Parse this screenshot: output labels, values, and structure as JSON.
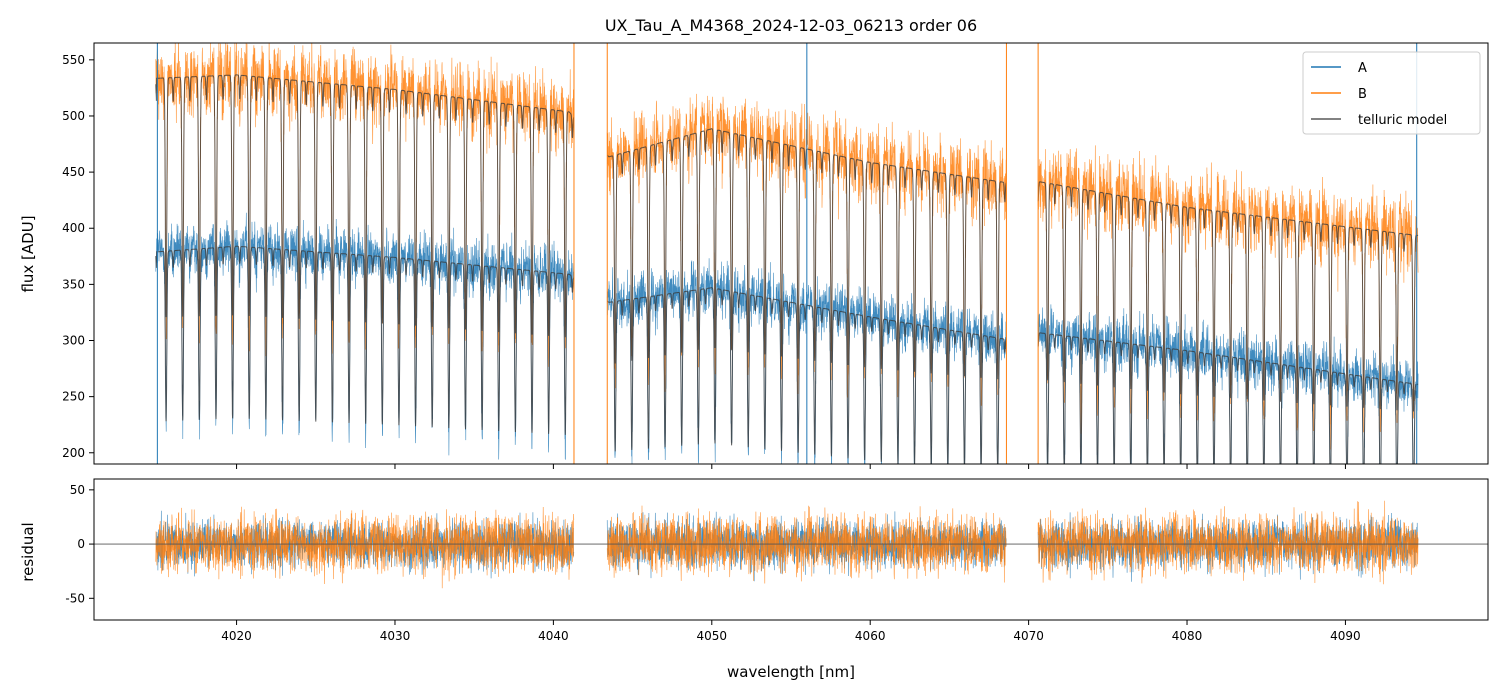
{
  "chart_data": [
    {
      "type": "line",
      "title": "UX_Tau_A_M4368_2024-12-03_06213  order 06",
      "ylabel": "flux [ADU]",
      "xlim": [
        4011,
        4099
      ],
      "ylim": [
        190,
        565
      ],
      "xticks": [
        4020,
        4030,
        4040,
        4050,
        4060,
        4070,
        4080,
        4090
      ],
      "yticks": [
        200,
        250,
        300,
        350,
        400,
        450,
        500,
        550
      ],
      "legend_position": "top-right",
      "segments": [
        [
          4014.9,
          4041.3
        ],
        [
          4043.4,
          4068.6
        ],
        [
          4070.6,
          4094.6
        ]
      ],
      "absorption_line_spacing_nm": 1.05,
      "series": [
        {
          "name": "A",
          "color": "#1f77b4",
          "continuum_points": [
            [
              4015,
              380
            ],
            [
              4020,
              385
            ],
            [
              4030,
              375
            ],
            [
              4041,
              360
            ],
            [
              4043.5,
              335
            ],
            [
              4050,
              348
            ],
            [
              4060,
              322
            ],
            [
              4068.6,
              302
            ],
            [
              4070.6,
              308
            ],
            [
              4080,
              292
            ],
            [
              4094.5,
              262
            ]
          ],
          "noise_amplitude": 20
        },
        {
          "name": "B",
          "color": "#ff7f0e",
          "continuum_points": [
            [
              4015,
              535
            ],
            [
              4020,
              538
            ],
            [
              4030,
              525
            ],
            [
              4041,
              505
            ],
            [
              4043.5,
              465
            ],
            [
              4050,
              490
            ],
            [
              4060,
              460
            ],
            [
              4068.6,
              442
            ],
            [
              4070.6,
              443
            ],
            [
              4080,
              420
            ],
            [
              4094.5,
              395
            ]
          ],
          "noise_amplitude": 28
        },
        {
          "name": "telluric model",
          "color": "#595959"
        }
      ]
    },
    {
      "type": "line",
      "xlabel": "wavelength [nm]",
      "ylabel": "residual",
      "xlim": [
        4011,
        4099
      ],
      "ylim": [
        -70,
        60
      ],
      "xticks": [
        4020,
        4030,
        4040,
        4050,
        4060,
        4070,
        4080,
        4090
      ],
      "yticks": [
        -50,
        0,
        50
      ],
      "zero_line": 0,
      "series": [
        {
          "color": "#1f77b4",
          "noise_amplitude": 18
        },
        {
          "color": "#ff7f0e",
          "noise_amplitude": 22
        }
      ]
    }
  ]
}
